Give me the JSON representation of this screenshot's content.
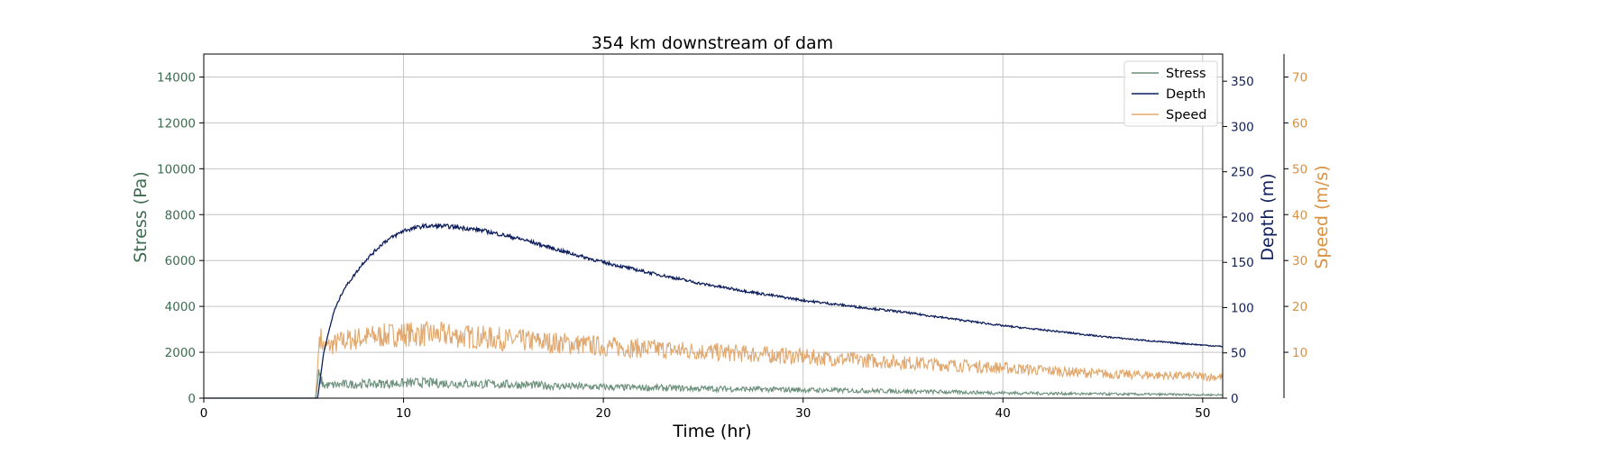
{
  "chart_data": {
    "type": "line",
    "title": "354 km downstream of dam",
    "xlabel": "Time (hr)",
    "xlim": [
      0,
      51
    ],
    "xticks": [
      0,
      10,
      20,
      30,
      40,
      50
    ],
    "grid": true,
    "legend_position": "top-right",
    "axes": [
      {
        "id": "stress",
        "label": "Stress (Pa)",
        "side": "left",
        "ylim": [
          0,
          15000
        ],
        "ticks": [
          0,
          2000,
          4000,
          6000,
          8000,
          10000,
          12000,
          14000
        ],
        "color": "#3d6b50"
      },
      {
        "id": "depth",
        "label": "Depth (m)",
        "side": "right",
        "ylim": [
          0,
          380
        ],
        "ticks": [
          0,
          50,
          100,
          150,
          200,
          250,
          300,
          350
        ],
        "color": "#0f1f5c"
      },
      {
        "id": "speed",
        "label": "Speed (m/s)",
        "side": "right-offset",
        "ylim": [
          0,
          75
        ],
        "ticks": [
          10,
          20,
          30,
          40,
          50,
          60,
          70
        ],
        "color": "#d9913f"
      }
    ],
    "series": [
      {
        "name": "Stress",
        "axis": "stress",
        "color": "#6b8f7b",
        "x": [
          0,
          5.6,
          5.75,
          6.0,
          7,
          8,
          10,
          11,
          12,
          14,
          16,
          18,
          20,
          25,
          30,
          35,
          40,
          45,
          51
        ],
        "y": [
          0,
          0,
          1000,
          550,
          600,
          620,
          650,
          680,
          650,
          620,
          580,
          520,
          480,
          420,
          360,
          300,
          230,
          180,
          140
        ]
      },
      {
        "name": "Depth",
        "axis": "depth",
        "color": "#0f1f5c",
        "x": [
          0,
          5.7,
          6.0,
          6.5,
          7,
          8,
          9,
          10,
          11,
          12,
          13,
          14,
          16,
          18,
          20,
          22,
          25,
          28,
          30,
          33,
          35,
          38,
          40,
          43,
          45,
          48,
          51
        ],
        "y": [
          0,
          0,
          50,
          95,
          120,
          150,
          172,
          185,
          190,
          190,
          188,
          185,
          175,
          162,
          150,
          140,
          126,
          115,
          108,
          100,
          95,
          86,
          80,
          73,
          68,
          62,
          57
        ]
      },
      {
        "name": "Speed",
        "axis": "speed",
        "color": "#e0a86e",
        "x": [
          0,
          5.6,
          5.8,
          6.0,
          7,
          8,
          10,
          12,
          14,
          16,
          18,
          20,
          25,
          30,
          35,
          40,
          45,
          51
        ],
        "y": [
          0,
          0,
          14,
          11,
          12.5,
          13.2,
          14.0,
          13.8,
          13.2,
          12.5,
          12.0,
          11.3,
          10.2,
          9.0,
          7.8,
          6.6,
          5.3,
          4.6
        ]
      }
    ]
  }
}
